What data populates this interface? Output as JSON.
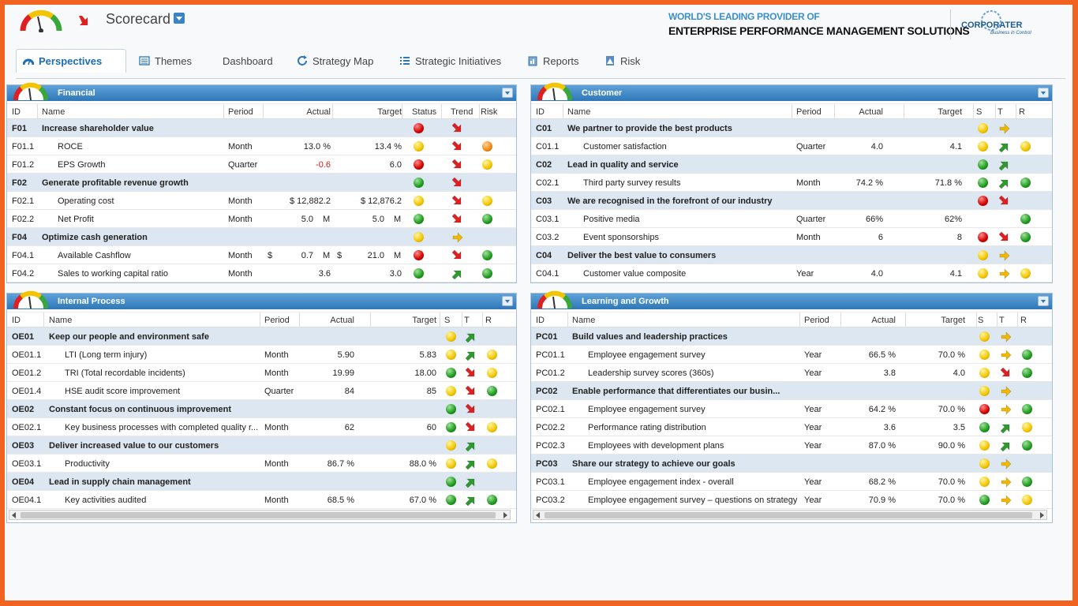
{
  "header": {
    "app_title": "Scorecard",
    "tagline_1": "WORLD'S LEADING PROVIDER OF",
    "tagline_2": "ENTERPRISE PERFORMANCE MANAGEMENT SOLUTIONS",
    "brand_name": "CORPORATER",
    "brand_sub": "Business in Control"
  },
  "tabs": [
    {
      "label": "Perspectives",
      "icon": "gauge-icon",
      "active": true
    },
    {
      "label": "Themes",
      "icon": "list-icon"
    },
    {
      "label": "Dashboard",
      "icon": ""
    },
    {
      "label": "Strategy Map",
      "icon": "refresh-icon"
    },
    {
      "label": "Strategic Initiatives",
      "icon": "bullet-list-icon"
    },
    {
      "label": "Reports",
      "icon": "report-icon"
    },
    {
      "label": "Risk",
      "icon": "risk-icon"
    }
  ],
  "colors": {
    "accent": "#2e77b8",
    "frame": "#f26322",
    "group_row": "#dce7f1"
  },
  "panels": [
    {
      "title": "Financial",
      "cols": {
        "id": "ID",
        "name": "Name",
        "period": "Period",
        "actual": "Actual",
        "target": "Target",
        "s": "Status",
        "t": "Trend",
        "r": "Risk"
      },
      "rows": [
        {
          "grp": true,
          "id": "F01",
          "name": "Increase shareholder value",
          "s": "red",
          "t": "down"
        },
        {
          "id": "F01.1",
          "name": "ROCE",
          "period": "Month",
          "actual": "13.0 %",
          "target": "13.4 %",
          "s": "yellow",
          "t": "down",
          "r": "orange"
        },
        {
          "id": "F01.2",
          "name": "EPS Growth",
          "period": "Quarter",
          "actual": "-0.6",
          "neg": true,
          "target": "6.0",
          "s": "red",
          "t": "down",
          "r": "yellow"
        },
        {
          "grp": true,
          "id": "F02",
          "name": "Generate profitable revenue growth",
          "s": "green",
          "t": "down"
        },
        {
          "id": "F02.1",
          "name": "Operating cost",
          "period": "Month",
          "actual": "$ 12,882.2",
          "target": "$ 12,876.2",
          "s": "yellow",
          "t": "down",
          "r": "yellow"
        },
        {
          "id": "F02.2",
          "name": "Net Profit",
          "period": "Month",
          "actual": "5.0",
          "au": "M",
          "target": "5.0",
          "tu": "M",
          "s": "green",
          "t": "down",
          "r": "green"
        },
        {
          "grp": true,
          "id": "F04",
          "name": "Optimize cash generation",
          "s": "yellow",
          "t": "right"
        },
        {
          "id": "F04.1",
          "name": "Available Cashflow",
          "period": "Month",
          "ap": "$",
          "actual": "0.7",
          "au": "M",
          "tp": "$",
          "target": "21.0",
          "tu": "M",
          "s": "red",
          "t": "down",
          "r": "green"
        },
        {
          "id": "F04.2",
          "name": "Sales to working capital ratio",
          "period": "Month",
          "actual": "3.6",
          "target": "3.0",
          "s": "green",
          "t": "up",
          "r": "green"
        }
      ]
    },
    {
      "title": "Customer",
      "cols": {
        "id": "ID",
        "name": "Name",
        "period": "Period",
        "actual": "Actual",
        "target": "Target",
        "s": "S",
        "t": "T",
        "r": "R"
      },
      "rows": [
        {
          "grp": true,
          "id": "C01",
          "name": "We partner to provide the best products",
          "s": "yellow",
          "t": "right"
        },
        {
          "id": "C01.1",
          "name": "Customer satisfaction",
          "period": "Quarter",
          "actual": "4.0",
          "target": "4.1",
          "s": "yellow",
          "t": "up",
          "r": "yellow"
        },
        {
          "grp": true,
          "id": "C02",
          "name": "Lead in quality and service",
          "s": "green",
          "t": "up"
        },
        {
          "id": "C02.1",
          "name": "Third party survey results",
          "period": "Month",
          "actual": "74.2 %",
          "target": "71.8 %",
          "s": "green",
          "t": "up",
          "r": "green"
        },
        {
          "grp": true,
          "id": "C03",
          "name": "We are recognised in the forefront of our industry",
          "s": "red",
          "t": "down"
        },
        {
          "id": "C03.1",
          "name": "Positive media",
          "period": "Quarter",
          "actual": "66%",
          "target": "62%",
          "r": "green"
        },
        {
          "id": "C03.2",
          "name": "Event sponsorships",
          "period": "Month",
          "actual": "6",
          "target": "8",
          "s": "red",
          "t": "down",
          "r": "green"
        },
        {
          "grp": true,
          "id": "C04",
          "name": "Deliver the best value to consumers",
          "s": "yellow",
          "t": "right"
        },
        {
          "id": "C04.1",
          "name": "Customer value composite",
          "period": "Year",
          "actual": "4.0",
          "target": "4.1",
          "s": "yellow",
          "t": "right",
          "r": "yellow"
        }
      ]
    },
    {
      "title": "Internal Process",
      "cols": {
        "id": "ID",
        "name": "Name",
        "period": "Period",
        "actual": "Actual",
        "target": "Target",
        "s": "S",
        "t": "T",
        "r": "R"
      },
      "rows": [
        {
          "grp": true,
          "id": "OE01",
          "name": "Keep our people and environment safe",
          "s": "yellow",
          "t": "up"
        },
        {
          "id": "OE01.1",
          "name": "LTI (Long term injury)",
          "period": "Month",
          "actual": "5.90",
          "target": "5.83",
          "s": "yellow",
          "t": "up",
          "r": "yellow"
        },
        {
          "id": "OE01.2",
          "name": "TRI (Total recordable incidents)",
          "period": "Month",
          "actual": "19.99",
          "target": "18.00",
          "s": "green",
          "t": "down",
          "r": "yellow"
        },
        {
          "id": "OE01.4",
          "name": "HSE audit score improvement",
          "period": "Quarter",
          "actual": "84",
          "target": "85",
          "s": "yellow",
          "t": "down",
          "r": "green"
        },
        {
          "grp": true,
          "id": "OE02",
          "name": "Constant focus on continuous improvement",
          "s": "green",
          "t": "down"
        },
        {
          "id": "OE02.1",
          "name": "Key business processes with completed quality r...",
          "period": "Month",
          "actual": "62",
          "target": "60",
          "s": "green",
          "t": "down",
          "r": "yellow"
        },
        {
          "grp": true,
          "id": "OE03",
          "name": "Deliver increased value to our customers",
          "s": "yellow",
          "t": "up"
        },
        {
          "id": "OE03.1",
          "name": "Productivity",
          "period": "Month",
          "actual": "86.7 %",
          "target": "88.0 %",
          "s": "yellow",
          "t": "up",
          "r": "yellow"
        },
        {
          "grp": true,
          "id": "OE04",
          "name": "Lead in supply chain management",
          "s": "green",
          "t": "up"
        },
        {
          "id": "OE04.1",
          "name": "Key activities audited",
          "period": "Month",
          "actual": "68.5 %",
          "target": "67.0 %",
          "s": "green",
          "t": "up",
          "r": "green"
        }
      ]
    },
    {
      "title": "Learning and Growth",
      "cols": {
        "id": "ID",
        "name": "Name",
        "period": "Period",
        "actual": "Actual",
        "target": "Target",
        "s": "S",
        "t": "T",
        "r": "R"
      },
      "rows": [
        {
          "grp": true,
          "id": "PC01",
          "name": "Build values and leadership practices",
          "s": "yellow",
          "t": "right"
        },
        {
          "id": "PC01.1",
          "name": "Employee engagement survey",
          "period": "Year",
          "actual": "66.5 %",
          "target": "70.0 %",
          "s": "yellow",
          "t": "right",
          "r": "green"
        },
        {
          "id": "PC01.2",
          "name": "Leadership survey scores (360s)",
          "period": "Year",
          "actual": "3.8",
          "target": "4.0",
          "s": "yellow",
          "t": "down",
          "r": "green"
        },
        {
          "grp": true,
          "id": "PC02",
          "name": "Enable performance that differentiates our busin...",
          "s": "yellow",
          "t": "right"
        },
        {
          "id": "PC02.1",
          "name": "Employee engagement survey",
          "period": "Year",
          "actual": "64.2 %",
          "target": "70.0 %",
          "s": "red",
          "t": "right",
          "r": "green"
        },
        {
          "id": "PC02.2",
          "name": "Performance rating distribution",
          "period": "Year",
          "actual": "3.6",
          "target": "3.5",
          "s": "green",
          "t": "up",
          "r": "yellow"
        },
        {
          "id": "PC02.3",
          "name": "Employees with development plans",
          "period": "Year",
          "actual": "87.0 %",
          "target": "90.0 %",
          "s": "yellow",
          "t": "up",
          "r": "green"
        },
        {
          "grp": true,
          "id": "PC03",
          "name": "Share our strategy to achieve our goals",
          "s": "yellow",
          "t": "right"
        },
        {
          "id": "PC03.1",
          "name": "Employee engagement index - overall",
          "period": "Year",
          "actual": "68.2 %",
          "target": "70.0 %",
          "s": "yellow",
          "t": "right",
          "r": "green"
        },
        {
          "id": "PC03.2",
          "name": "Employee engagement survey – questions on strategy",
          "period": "Year",
          "actual": "70.9 %",
          "target": "70.0 %",
          "s": "green",
          "t": "right",
          "r": "yellow"
        }
      ]
    }
  ]
}
